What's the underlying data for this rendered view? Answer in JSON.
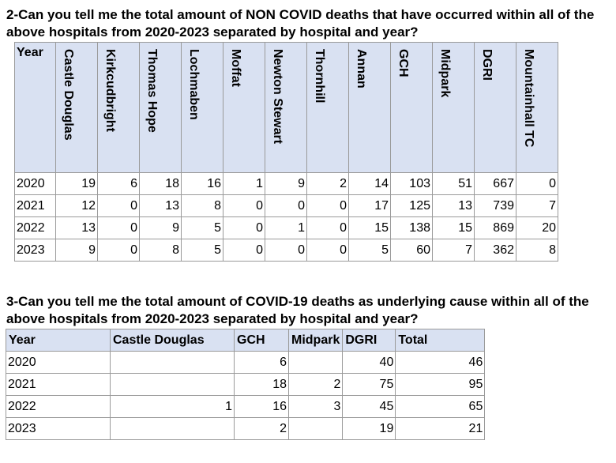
{
  "q2": {
    "title": "2-Can you tell me the total amount of NON COVID deaths that have occurred within all of the above hospitals from 2020-2023 separated by hospital and year?",
    "year_header": "Year",
    "hospitals": [
      "Castle Douglas",
      "Kirkcudbright",
      "Thomas Hope",
      "Lochmaben",
      "Moffat",
      "Newton Stewart",
      "Thornhill",
      "Annan",
      "GCH",
      "Midpark",
      "DGRI",
      "Mountainhall TC"
    ],
    "rows": [
      {
        "year": "2020",
        "values": [
          "19",
          "6",
          "18",
          "16",
          "1",
          "9",
          "2",
          "14",
          "103",
          "51",
          "667",
          "0"
        ]
      },
      {
        "year": "2021",
        "values": [
          "12",
          "0",
          "13",
          "8",
          "0",
          "0",
          "0",
          "17",
          "125",
          "13",
          "739",
          "7"
        ]
      },
      {
        "year": "2022",
        "values": [
          "13",
          "0",
          "9",
          "5",
          "0",
          "1",
          "0",
          "15",
          "138",
          "15",
          "869",
          "20"
        ]
      },
      {
        "year": "2023",
        "values": [
          "9",
          "0",
          "8",
          "5",
          "0",
          "0",
          "0",
          "5",
          "60",
          "7",
          "362",
          "8"
        ]
      }
    ]
  },
  "q3": {
    "title": "3-Can you tell me the total amount of COVID-19 deaths as underlying cause within all of the above hospitals from 2020-2023 separated by hospital and year?",
    "headers": [
      "Year",
      "Castle Douglas",
      "GCH",
      "Midpark",
      "DGRI",
      "Total"
    ],
    "rows": [
      {
        "year": "2020",
        "values": [
          "",
          "6",
          "",
          "40",
          "46"
        ]
      },
      {
        "year": "2021",
        "values": [
          "",
          "18",
          "2",
          "75",
          "95"
        ]
      },
      {
        "year": "2022",
        "values": [
          "1",
          "16",
          "3",
          "45",
          "65"
        ]
      },
      {
        "year": "2023",
        "values": [
          "",
          "2",
          "",
          "19",
          "21"
        ]
      }
    ]
  }
}
